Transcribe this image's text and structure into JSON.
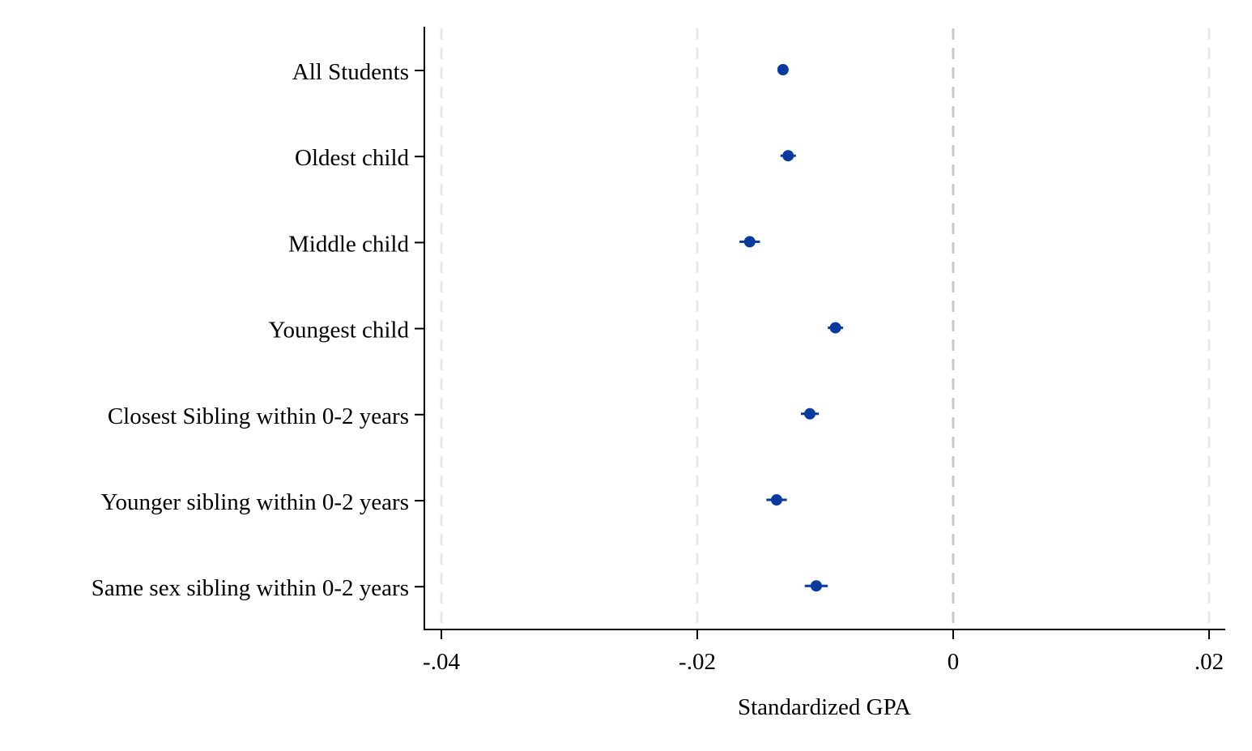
{
  "chart_data": {
    "type": "scatter",
    "title": "",
    "xlabel": "Standardized GPA",
    "ylabel": "",
    "xlim": [
      -0.0415,
      0.0213
    ],
    "xticks": [
      -0.04,
      -0.02,
      0,
      0.02
    ],
    "xtick_labels": [
      "-.04",
      "-.02",
      "0",
      ".02"
    ],
    "grid": "vertical-dashed",
    "reference_line": 0,
    "legend": "none",
    "marker_color": "#0b3a9e",
    "categories": [
      "All Students",
      "Oldest child",
      "Middle child",
      "Youngest child",
      "Closest Sibling within 0-2 years",
      "Younger sibling within 0-2 years",
      "Same sex sibling within 0-2 years"
    ],
    "values": [
      -0.0133,
      -0.0129,
      -0.0159,
      -0.0092,
      -0.0112,
      -0.0138,
      -0.0107
    ],
    "ci_low": [
      -0.0137,
      -0.0135,
      -0.0167,
      -0.0098,
      -0.0119,
      -0.0146,
      -0.0116
    ],
    "ci_high": [
      -0.0129,
      -0.0123,
      -0.0151,
      -0.0086,
      -0.0105,
      -0.013,
      -0.0098
    ]
  }
}
